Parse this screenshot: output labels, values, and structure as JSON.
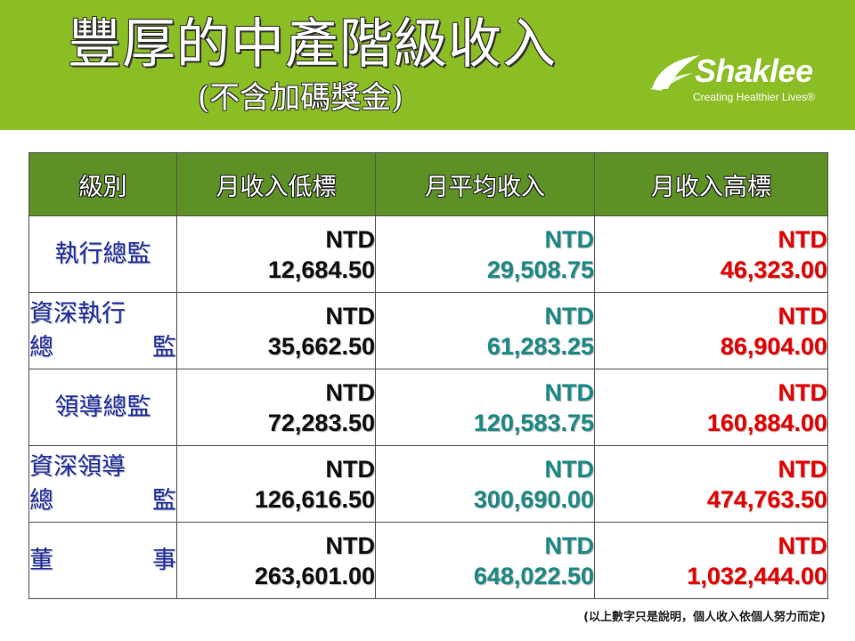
{
  "header": {
    "title": "豐厚的中產階級收入",
    "subtitle": "(不含加碼獎金)",
    "logo": {
      "brand": "Shaklee",
      "tagline": "Creating Healthier Lives®"
    }
  },
  "table": {
    "headers": [
      "級別",
      "月收入低標",
      "月平均收入",
      "月收入高標"
    ],
    "currency": "NTD",
    "rows": [
      {
        "level": [
          "執行總監"
        ],
        "low": "12,684.50",
        "avg": "29,508.75",
        "high": "46,323.00"
      },
      {
        "level": [
          "資深執行",
          "總",
          "監"
        ],
        "low": "35,662.50",
        "avg": "61,283.25",
        "high": "86,904.00"
      },
      {
        "level": [
          "領導總監"
        ],
        "low": "72,283.50",
        "avg": "120,583.75",
        "high": "160,884.00"
      },
      {
        "level": [
          "資深領導",
          "總",
          "監"
        ],
        "low": "126,616.50",
        "avg": "300,690.00",
        "high": "474,763.50"
      },
      {
        "level": [
          "董",
          "事"
        ],
        "low": "263,601.00",
        "avg": "648,022.50",
        "high": "1,032,444.00"
      }
    ]
  },
  "footnote": "(以上數字只是說明，個人收入依個人努力而定)",
  "colors": {
    "header_band": "#8bbd24",
    "table_header": "#5e9125",
    "level_text": "#1f2fa3",
    "low_value": "#111111",
    "avg_value": "#1e8a86",
    "high_value": "#e60000"
  }
}
